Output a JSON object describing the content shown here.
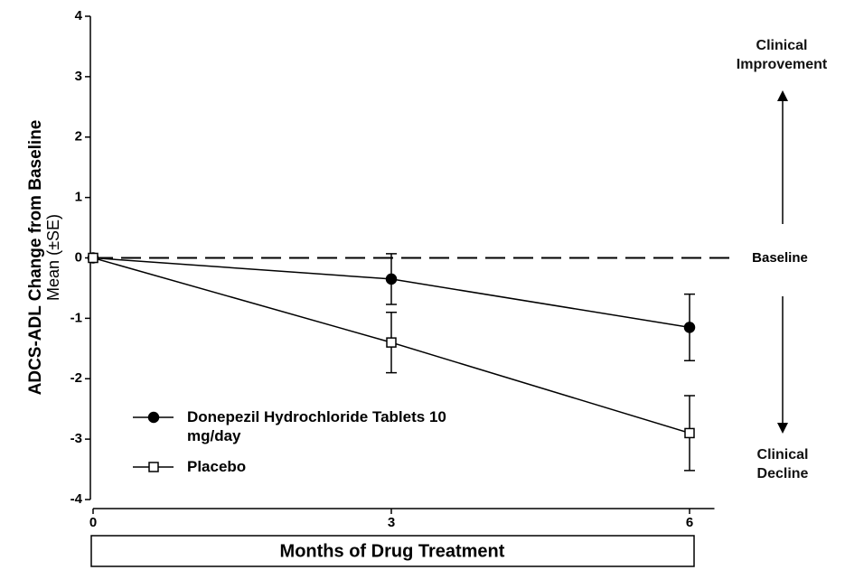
{
  "chart_data": {
    "type": "line",
    "y_label": "ADCS-ADL Change from Baseline",
    "y_sublabel": "Mean (±SE)",
    "x_label": "Months of Drug Treatment",
    "x": [
      0,
      3,
      6
    ],
    "xlim": [
      0,
      6.25
    ],
    "xticks": [
      0,
      3,
      6
    ],
    "ylim": [
      -4,
      4
    ],
    "yticks": [
      -4,
      -3,
      -2,
      -1,
      0,
      1,
      2,
      3,
      4
    ],
    "reference_line": {
      "value": 0,
      "label": "Baseline"
    },
    "annotations": {
      "top": "Clinical Improvement",
      "bottom": "Clinical Decline"
    },
    "series": [
      {
        "name": "Donepezil Hydrochloride Tablets 10 mg/day",
        "color": "#000000",
        "marker": "circle",
        "filled": true,
        "values": [
          0,
          -0.35,
          -1.15
        ],
        "errors": [
          0,
          0.42,
          0.55
        ]
      },
      {
        "name": "Placebo",
        "color": "#000000",
        "marker": "square",
        "filled": false,
        "values": [
          0,
          -1.4,
          -2.9
        ],
        "errors": [
          0,
          0.5,
          0.62
        ]
      }
    ]
  }
}
